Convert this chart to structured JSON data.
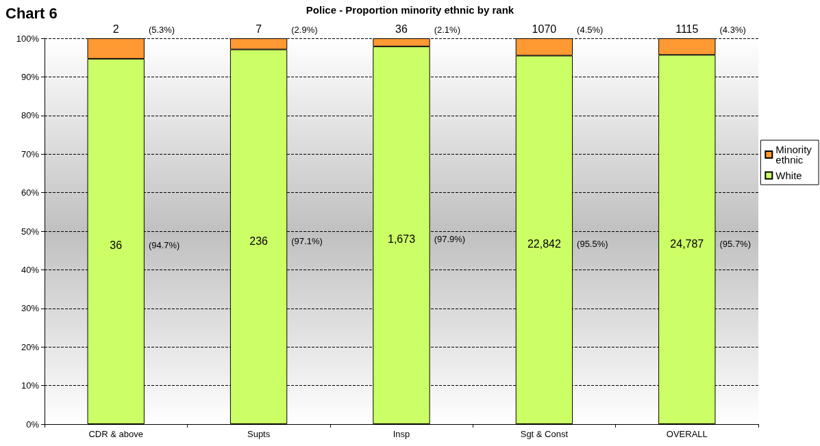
{
  "chart_data": {
    "type": "bar",
    "stacked": true,
    "title": "Police - Proportion minority ethnic by rank",
    "annotations": [
      "Chart 6",
      "2",
      "7",
      "36",
      "1070",
      "1115",
      "36",
      "236",
      "1,673",
      "22,842",
      "24,787",
      "(5.3%)",
      "(2.9%)",
      "(2.1%)",
      "(4.5%)",
      "(4.3%)",
      "(94.7%)",
      "(97.1%)",
      "(97.9%)",
      "(95.5%)",
      "(95.7%)"
    ],
    "categories": [
      "CDR & above",
      "Supts",
      "Insp",
      "Sgt & Const",
      "OVERALL"
    ],
    "series": [
      {
        "name": "White",
        "color": "#ccff66",
        "values": [
          94.7,
          97.1,
          97.9,
          95.5,
          95.7
        ]
      },
      {
        "name": "Minority ethnic",
        "color": "#ff9933",
        "values": [
          5.3,
          2.9,
          2.1,
          4.5,
          4.3
        ]
      }
    ],
    "ylim": [
      0,
      100
    ],
    "yticks": [
      {
        "value": 0,
        "label": "0%"
      },
      {
        "value": 10,
        "label": "10%"
      },
      {
        "value": 20,
        "label": "20%"
      },
      {
        "value": 30,
        "label": "30%"
      },
      {
        "value": 40,
        "label": "40%"
      },
      {
        "value": 50,
        "label": "50%"
      },
      {
        "value": 60,
        "label": "60%"
      },
      {
        "value": 70,
        "label": "70%"
      },
      {
        "value": 80,
        "label": "80%"
      },
      {
        "value": 90,
        "label": "90%"
      },
      {
        "value": 100,
        "label": "100%"
      }
    ],
    "grid": "y",
    "legend": "right"
  }
}
